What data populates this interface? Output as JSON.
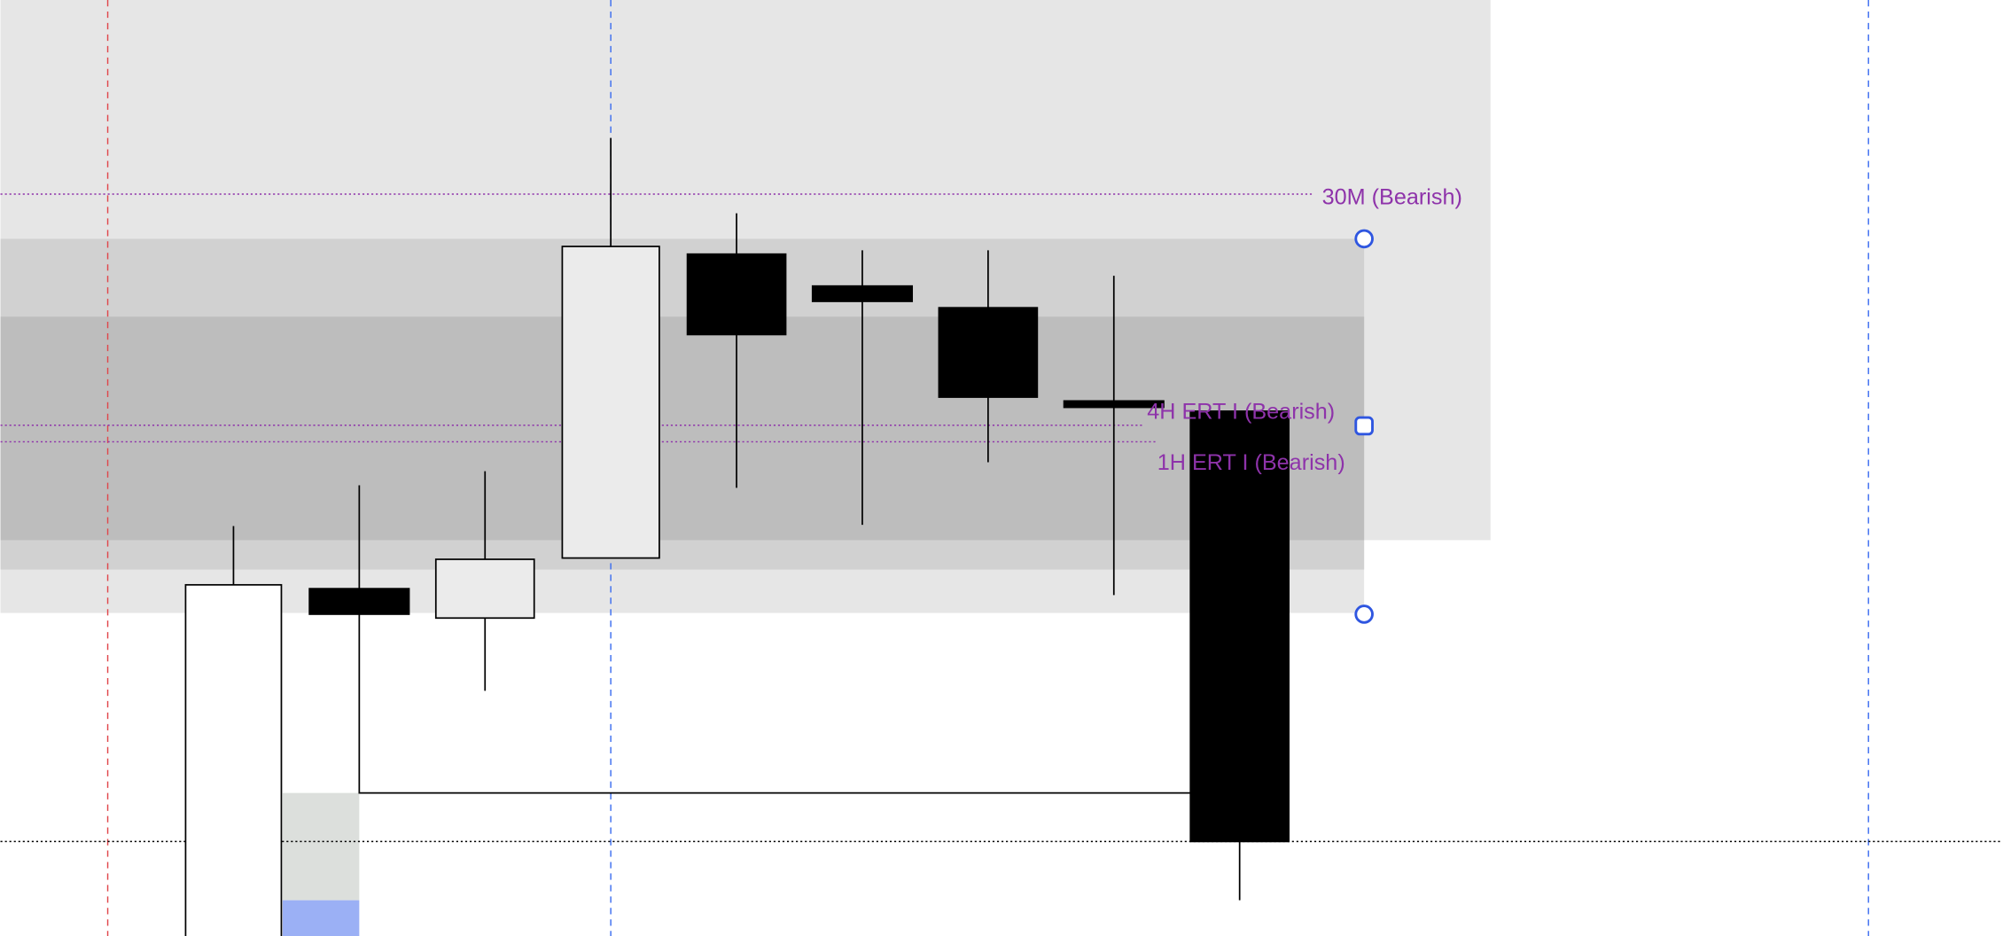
{
  "chart": {
    "zones": [
      {
        "label": "30M (Bearish)",
        "color": "#8e33aa"
      },
      {
        "label": "4H ERT I (Bearish)",
        "color": "#8e33aa"
      },
      {
        "label": "1H ERT I (Bearish)",
        "color": "#8e33aa"
      }
    ],
    "colors": {
      "zone_light": "#e6e6e6",
      "zone_mid": "#d1d1d1",
      "zone_dark": "#bdbdbd",
      "handle": "#2f56e0",
      "session_line_red": "#e0474c",
      "session_line_blue": "#3d6ef0",
      "volume_grey": "#dcdfdc",
      "volume_blue": "#9bb0f5"
    }
  }
}
